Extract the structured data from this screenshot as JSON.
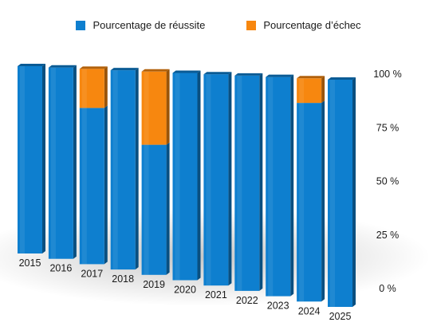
{
  "chart_data": {
    "type": "bar",
    "stacked": true,
    "style": "3d",
    "categories": [
      "2015",
      "2016",
      "2017",
      "2018",
      "2019",
      "2020",
      "2021",
      "2022",
      "2023",
      "2024",
      "2025"
    ],
    "series": [
      {
        "name": "Pourcentage de réussite",
        "color": "#0e7fcf",
        "values": [
          100,
          100,
          80,
          100,
          64,
          100,
          100,
          100,
          100,
          89,
          100
        ]
      },
      {
        "name": "Pourcentage d’échec",
        "color": "#f7870f",
        "values": [
          0,
          0,
          20,
          0,
          36,
          0,
          0,
          0,
          0,
          11,
          0
        ]
      }
    ],
    "y_ticks": [
      "0 %",
      "25 %",
      "50 %",
      "75 %",
      "100 %"
    ],
    "y_tick_values": [
      0,
      25,
      50,
      75,
      100
    ],
    "ylim": [
      0,
      100
    ],
    "grid": false,
    "legend_position": "top"
  }
}
